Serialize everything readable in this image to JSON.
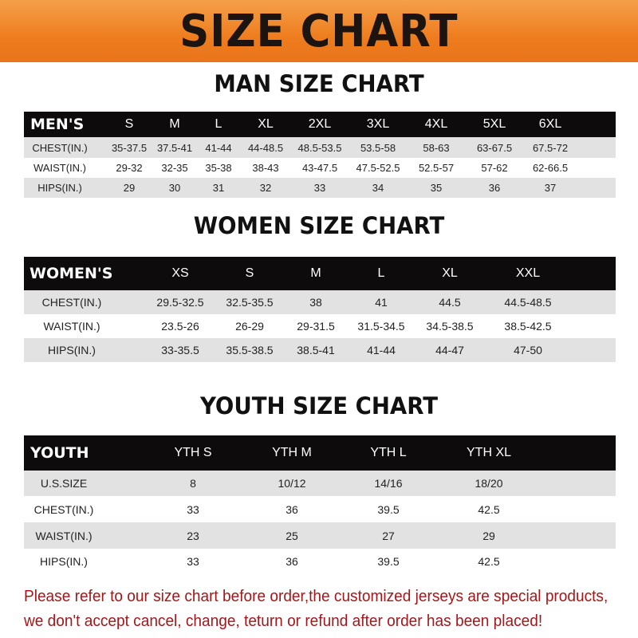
{
  "banner_title": "SIZE CHART",
  "men": {
    "title": "MAN SIZE CHART",
    "header": [
      "MEN'S",
      "S",
      "M",
      "L",
      "XL",
      "2XL",
      "3XL",
      "4XL",
      "5XL",
      "6XL"
    ],
    "rows": [
      [
        "CHEST(IN.)",
        "35-37.5",
        "37.5-41",
        "41-44",
        "44-48.5",
        "48.5-53.5",
        "53.5-58",
        "58-63",
        "63-67.5",
        "67.5-72"
      ],
      [
        "WAIST(IN.)",
        "29-32",
        "32-35",
        "35-38",
        "38-43",
        "43-47.5",
        "47.5-52.5",
        "52.5-57",
        "57-62",
        "62-66.5"
      ],
      [
        "HIPS(IN.)",
        "29",
        "30",
        "31",
        "32",
        "33",
        "34",
        "35",
        "36",
        "37"
      ]
    ]
  },
  "women": {
    "title": "WOMEN SIZE CHART",
    "header": [
      "WOMEN'S",
      "XS",
      "S",
      "M",
      "L",
      "XL",
      "XXL"
    ],
    "rows": [
      [
        "CHEST(IN.)",
        "29.5-32.5",
        "32.5-35.5",
        "38",
        "41",
        "44.5",
        "44.5-48.5"
      ],
      [
        "WAIST(IN.)",
        "23.5-26",
        "26-29",
        "29-31.5",
        "31.5-34.5",
        "34.5-38.5",
        "38.5-42.5"
      ],
      [
        "HIPS(IN.)",
        "33-35.5",
        "35.5-38.5",
        "38.5-41",
        "41-44",
        "44-47",
        "47-50"
      ]
    ]
  },
  "youth": {
    "title": "YOUTH SIZE CHART",
    "header": [
      "YOUTH",
      "YTH S",
      "YTH M",
      "YTH L",
      "YTH XL"
    ],
    "rows": [
      [
        "U.S.SIZE",
        "8",
        "10/12",
        "14/16",
        "18/20"
      ],
      [
        "CHEST(IN.)",
        "33",
        "36",
        "39.5",
        "42.5"
      ],
      [
        "WAIST(IN.)",
        "23",
        "25",
        "27",
        "29"
      ],
      [
        "HIPS(IN.)",
        "33",
        "36",
        "39.5",
        "42.5"
      ]
    ]
  },
  "note": {
    "line1": "Please refer to our size chart before order,the customized jerseys are special products,",
    "line2": "we don't accept cancel, change, teturn or refund after order has been placed!"
  },
  "colors": {
    "banner": "#ee7d1e",
    "header_row": "#0d0b0b",
    "stripe": "#e2e2e2",
    "note": "#a3171a"
  }
}
